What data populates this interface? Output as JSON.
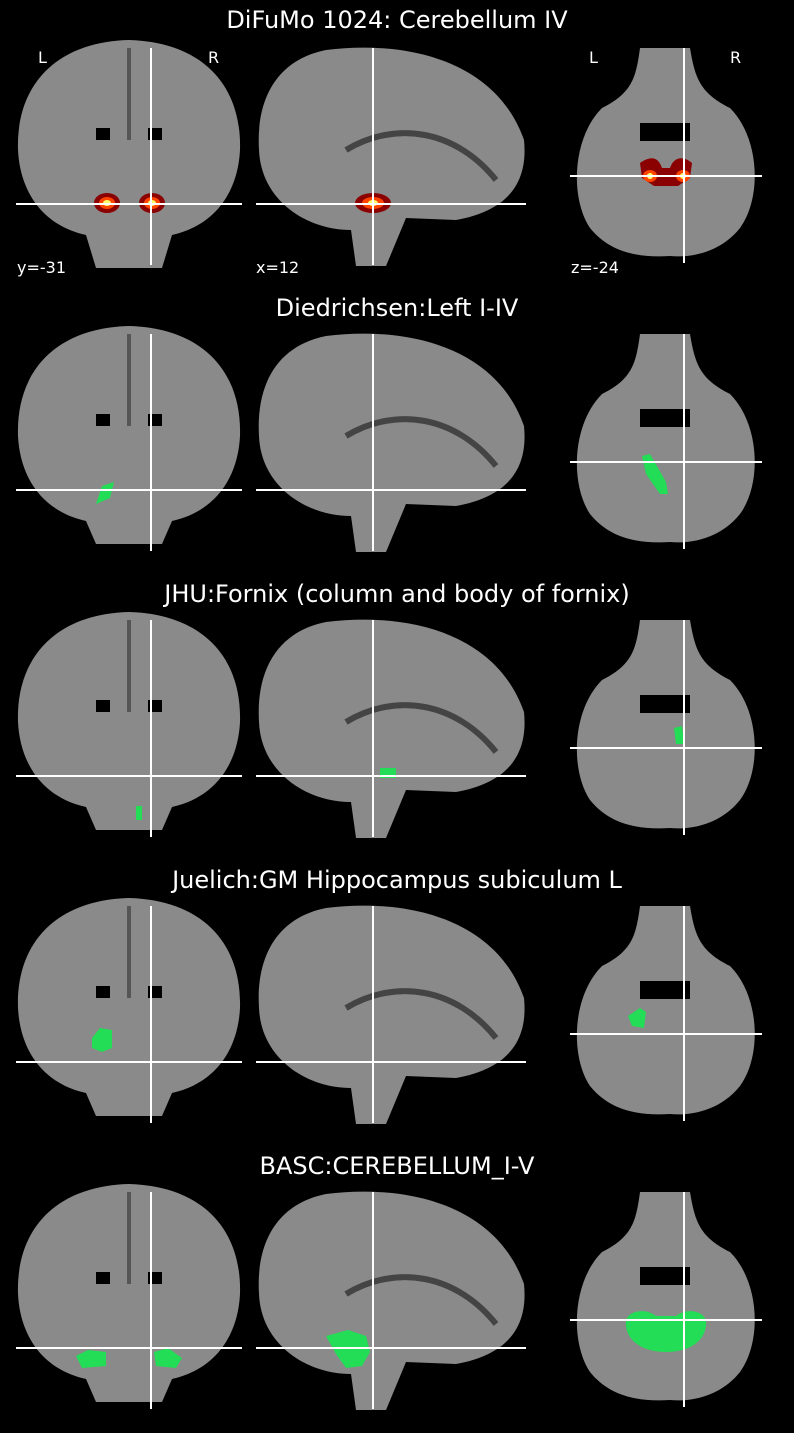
{
  "panels": [
    {
      "title": "DiFuMo 1024: Cerebellum IV",
      "overlay": "heat",
      "coronal_label": "y=-31",
      "sagittal_label": "x=12",
      "axial_label": "z=-24",
      "left_label": "L",
      "right_label": "R"
    },
    {
      "title": "Diedrichsen:Left I-IV",
      "overlay": "green"
    },
    {
      "title": "JHU:Fornix (column and body of fornix)",
      "overlay": "green"
    },
    {
      "title": "Juelich:GM Hippocampus subiculum L",
      "overlay": "green"
    },
    {
      "title": "BASC:CEREBELLUM_I-V",
      "overlay": "green"
    }
  ],
  "colors": {
    "background": "#000000",
    "text": "#ffffff",
    "crosshair": "#ffffff",
    "atlas_overlay": "#22dd55",
    "heat_low": "#8b0000",
    "heat_mid": "#ff4500",
    "heat_high": "#ffff66"
  }
}
